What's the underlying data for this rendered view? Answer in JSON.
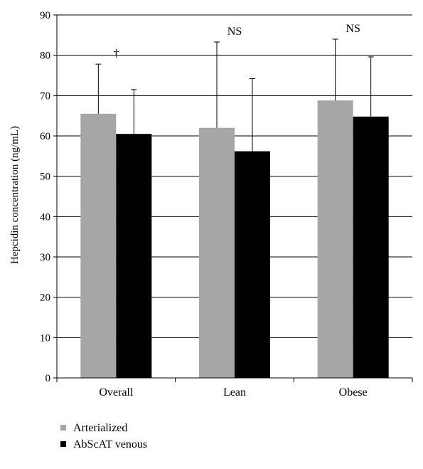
{
  "chart_data": {
    "type": "bar",
    "title": "",
    "xlabel": "",
    "ylabel": "Hepcidin concentration (ng/mL)",
    "ylim": [
      0,
      90
    ],
    "yticks": [
      0,
      10,
      20,
      30,
      40,
      50,
      60,
      70,
      80,
      90
    ],
    "categories": [
      "Overall",
      "Lean",
      "Obese"
    ],
    "series": [
      {
        "name": "Arterialized",
        "color": "#a6a6a6",
        "values": [
          65.5,
          62.0,
          68.8
        ],
        "error": [
          12.3,
          21.3,
          15.2
        ]
      },
      {
        "name": "AbScAT venous",
        "color": "#000000",
        "values": [
          60.5,
          56.2,
          64.8
        ],
        "error": [
          11.0,
          18.0,
          14.8
        ]
      }
    ],
    "annotations": [
      "†",
      "NS",
      "NS"
    ],
    "grid": "horizontal",
    "legend": "bottom-left"
  }
}
